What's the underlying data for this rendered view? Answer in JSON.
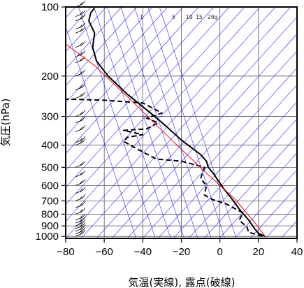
{
  "chart_data": {
    "type": "line",
    "title": "",
    "xlabel": "気温(実線), 露点(破線)",
    "ylabel": "気圧(hPa)",
    "xlim": [
      -80,
      40
    ],
    "ylim": [
      1020,
      100
    ],
    "y_scale": "log",
    "xticks": [
      -80,
      -60,
      -40,
      -20,
      0,
      20,
      40
    ],
    "xtick_labels": [
      "−80",
      "−60",
      "−40",
      "−20",
      "0",
      "20",
      "40"
    ],
    "yticks": [
      100,
      200,
      300,
      400,
      500,
      600,
      700,
      800,
      900,
      1000
    ],
    "ytick_labels": [
      "100",
      "200",
      "300",
      "400",
      "500",
      "600",
      "700",
      "800",
      "900",
      "1000"
    ],
    "mixing_ratio_labels": [
      "1",
      "5",
      "10",
      "15",
      "20g"
    ],
    "background_lines": {
      "dry_adiabats_color": "#2a2aff",
      "mixing_ratio_color": "#2a2aff"
    },
    "series": [
      {
        "style": "solid",
        "color": "#000000",
        "points": [
          {
            "t": 23.5,
            "p": 1000
          },
          {
            "t": 20,
            "p": 970
          },
          {
            "t": 18,
            "p": 925
          },
          {
            "t": 15,
            "p": 850
          },
          {
            "t": 10,
            "p": 760
          },
          {
            "t": 7,
            "p": 700
          },
          {
            "t": 2,
            "p": 620
          },
          {
            "t": -3.5,
            "p": 530
          },
          {
            "t": -6,
            "p": 500
          },
          {
            "t": -7,
            "p": 470
          },
          {
            "t": -10,
            "p": 440
          },
          {
            "t": -20,
            "p": 380
          },
          {
            "t": -28,
            "p": 330
          },
          {
            "t": -36,
            "p": 290
          },
          {
            "t": -48,
            "p": 240
          },
          {
            "t": -58,
            "p": 200
          },
          {
            "t": -64,
            "p": 172
          },
          {
            "t": -66,
            "p": 150
          },
          {
            "t": -65,
            "p": 130
          },
          {
            "t": -68,
            "p": 115
          },
          {
            "t": -67,
            "p": 106
          },
          {
            "t": -65,
            "p": 101
          }
        ]
      },
      {
        "style": "dashed",
        "color": "#000000",
        "points": [
          {
            "t": 22,
            "p": 1000
          },
          {
            "t": 20,
            "p": 985
          },
          {
            "t": 15,
            "p": 960
          },
          {
            "t": 14,
            "p": 910
          },
          {
            "t": 10,
            "p": 850
          },
          {
            "t": 12,
            "p": 790
          },
          {
            "t": 3,
            "p": 720
          },
          {
            "t": -4,
            "p": 690
          },
          {
            "t": -8,
            "p": 660
          },
          {
            "t": -7,
            "p": 600
          },
          {
            "t": -10,
            "p": 560
          },
          {
            "t": -8,
            "p": 500
          },
          {
            "t": -20,
            "p": 470
          },
          {
            "t": -33,
            "p": 460
          },
          {
            "t": -42,
            "p": 420
          },
          {
            "t": -50,
            "p": 385
          },
          {
            "t": -48,
            "p": 370
          },
          {
            "t": -40,
            "p": 360
          },
          {
            "t": -50,
            "p": 345
          },
          {
            "t": -38,
            "p": 340
          },
          {
            "t": -32,
            "p": 320
          },
          {
            "t": -38,
            "p": 305
          },
          {
            "t": -30,
            "p": 290
          },
          {
            "t": -40,
            "p": 262
          },
          {
            "t": -60,
            "p": 255
          },
          {
            "t": -80,
            "p": 252
          }
        ]
      },
      {
        "style": "solid",
        "color": "#ff0000",
        "points": [
          {
            "t": 23.5,
            "p": 1000
          },
          {
            "t": 18,
            "p": 870
          },
          {
            "t": 8,
            "p": 690
          },
          {
            "t": -8,
            "p": 520
          },
          {
            "t": -25,
            "p": 380
          },
          {
            "t": -45,
            "p": 260
          },
          {
            "t": -65,
            "p": 180
          },
          {
            "t": -80,
            "p": 145
          }
        ]
      }
    ],
    "wind_barbs": [
      {
        "p": 1000
      },
      {
        "p": 975
      },
      {
        "p": 950
      },
      {
        "p": 925
      },
      {
        "p": 900
      },
      {
        "p": 875
      },
      {
        "p": 850
      },
      {
        "p": 800
      },
      {
        "p": 750
      },
      {
        "p": 700
      },
      {
        "p": 650
      },
      {
        "p": 600
      },
      {
        "p": 550
      },
      {
        "p": 500
      },
      {
        "p": 400
      },
      {
        "p": 390
      },
      {
        "p": 350
      },
      {
        "p": 320
      },
      {
        "p": 300
      },
      {
        "p": 250
      },
      {
        "p": 230
      },
      {
        "p": 200
      },
      {
        "p": 175
      },
      {
        "p": 165
      },
      {
        "p": 150
      },
      {
        "p": 130
      },
      {
        "p": 125
      },
      {
        "p": 115
      },
      {
        "p": 110
      },
      {
        "p": 100
      }
    ]
  }
}
